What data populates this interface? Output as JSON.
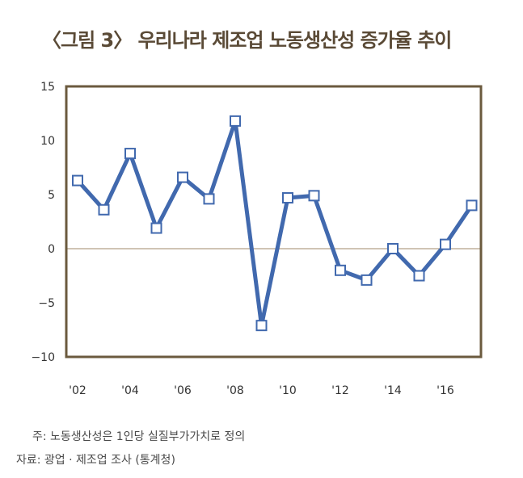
{
  "title": "〈그림 3〉 우리나라 제조업 노동생산성 증가율 추이",
  "chart_data": {
    "type": "line",
    "title": "〈그림 3〉 우리나라 제조업 노동생산성 증가율 추이",
    "xlabel": "",
    "ylabel": "",
    "x": [
      2002,
      2003,
      2004,
      2005,
      2006,
      2007,
      2008,
      2009,
      2010,
      2011,
      2012,
      2013,
      2014,
      2015,
      2016,
      2017
    ],
    "x_tick_values": [
      2002,
      2004,
      2006,
      2008,
      2010,
      2012,
      2014,
      2016
    ],
    "x_tick_labels": [
      "'02",
      "'04",
      "'06",
      "'08",
      "'10",
      "'12",
      "'14",
      "'16"
    ],
    "y_ticks": [
      15,
      10,
      5,
      0,
      -5,
      -10
    ],
    "y_tick_labels": [
      "15",
      "10",
      "5",
      "0",
      "−5",
      "−10"
    ],
    "ylim": [
      -10,
      15
    ],
    "grid": false,
    "series": [
      {
        "name": "노동생산성 증가율",
        "values": [
          6.3,
          3.6,
          8.8,
          1.9,
          6.6,
          4.6,
          11.8,
          -7.1,
          4.7,
          4.9,
          -2.0,
          -2.9,
          0.0,
          -2.5,
          0.4,
          4.0
        ]
      }
    ],
    "colors": {
      "line": "#4169ae",
      "marker_fill": "#ffffff",
      "frame": "#6b5a3e",
      "zero_line": "#a08a6a",
      "title": "#5a4a36"
    }
  },
  "notes": {
    "note1": "주: 노동생산성은 1인당 실질부가가치로 정의",
    "note2": "자료: 광업 · 제조업 조사 (통계청)"
  }
}
